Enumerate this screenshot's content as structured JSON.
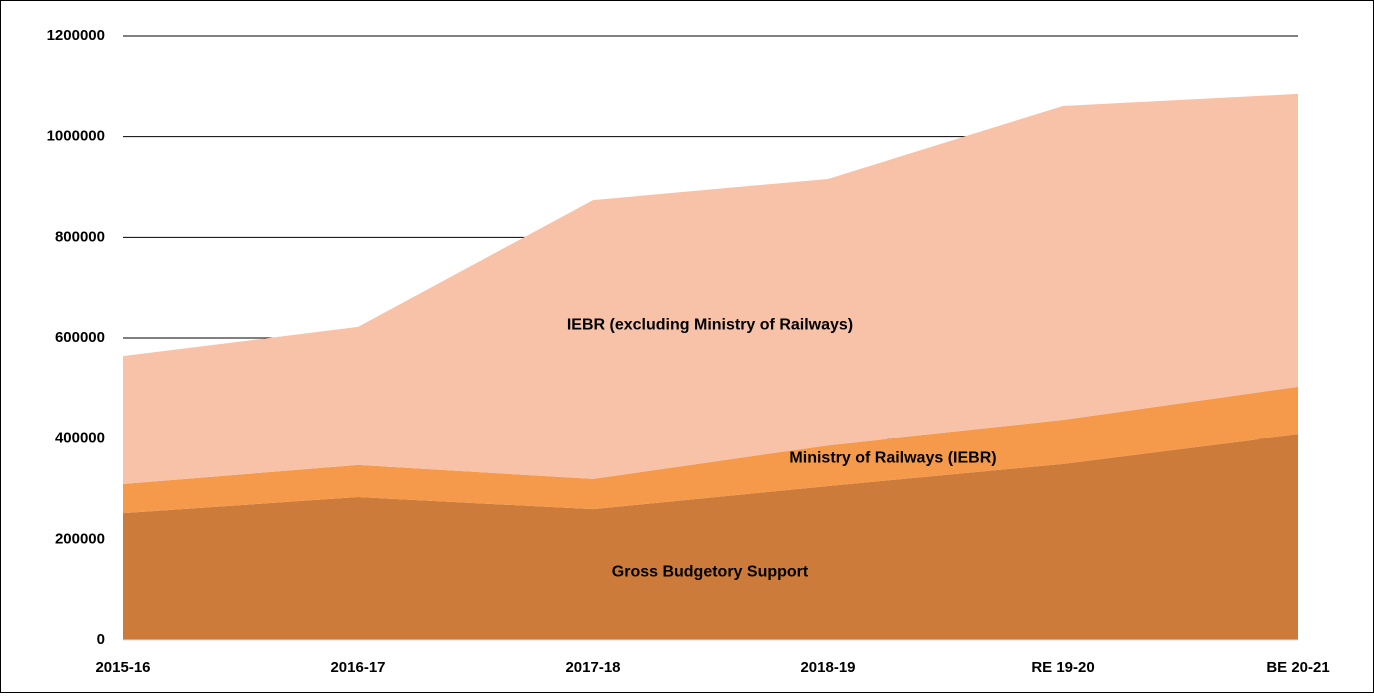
{
  "chart_data": {
    "type": "stacked_area",
    "categories": [
      "2015-16",
      "2016-17",
      "2017-18",
      "2018-19",
      "RE 19-20",
      "BE 20-21"
    ],
    "series": [
      {
        "name": "Gross Budgetory Support",
        "color": "#cd7b3a",
        "values": [
          252000,
          284000,
          260000,
          306000,
          350000,
          409000
        ]
      },
      {
        "name": "Ministry of Railways (IEBR)",
        "color": "#f5994b",
        "values": [
          58000,
          64000,
          60000,
          81000,
          87000,
          94000
        ]
      },
      {
        "name": "IEBR (excluding Ministry of Railways)",
        "color": "#f8c2a8",
        "values": [
          254000,
          274000,
          554000,
          529000,
          624000,
          582000
        ]
      }
    ],
    "ylim": [
      0,
      1200000
    ],
    "yticks": [
      0,
      200000,
      400000,
      600000,
      800000,
      1000000,
      1200000
    ],
    "grid": true
  }
}
